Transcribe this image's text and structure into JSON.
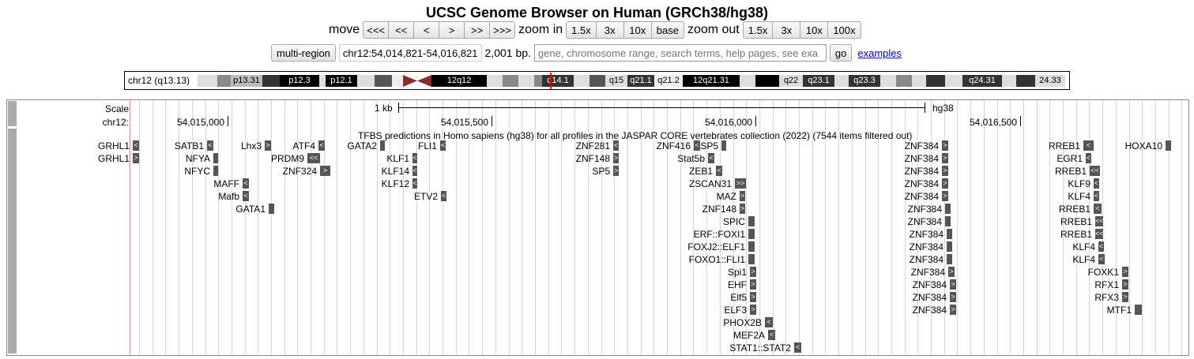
{
  "title": "UCSC Genome Browser on Human (GRCh38/hg38)",
  "nav": {
    "move_label": "move",
    "move_buttons": [
      "<<<",
      "<<",
      "<",
      ">",
      ">>",
      ">>>"
    ],
    "zoom_in_label": "zoom in",
    "zoom_in_buttons": [
      "1.5x",
      "3x",
      "10x",
      "base"
    ],
    "zoom_out_label": "zoom out",
    "zoom_out_buttons": [
      "1.5x",
      "3x",
      "10x",
      "100x"
    ]
  },
  "position": {
    "multi_region": "multi-region",
    "range": "chr12:54,014,821-54,016,821",
    "size": "2,001 bp.",
    "search_placeholder": "gene, chromosome range, search terms, help pages, see exa",
    "go": "go",
    "examples": "examples"
  },
  "ideogram": {
    "label": "chr12 (q13.13)",
    "bands": [
      {
        "name": "",
        "color": "#ddd"
      },
      {
        "name": "",
        "color": "#888"
      },
      {
        "name": "p13.31",
        "color": "#bbb"
      },
      {
        "name": "",
        "color": "#333"
      },
      {
        "name": "p12.3",
        "color": "#000"
      },
      {
        "name": "",
        "color": "#ddd"
      },
      {
        "name": "p12.1",
        "color": "#000"
      },
      {
        "name": "",
        "color": "#ddd"
      },
      {
        "name": "",
        "color": "#555"
      },
      {
        "name": "",
        "color": "#eee"
      },
      {
        "name": "cen",
        "color": "#8b2c2c"
      },
      {
        "name": "12q12",
        "color": "#000"
      },
      {
        "name": "",
        "color": "#ddd"
      },
      {
        "name": "",
        "color": "#888"
      },
      {
        "name": "",
        "color": "#ddd"
      },
      {
        "name": "",
        "color": "#888"
      },
      {
        "name": "q14.1",
        "color": "#333"
      },
      {
        "name": "",
        "color": "#ddd"
      },
      {
        "name": "",
        "color": "#555"
      },
      {
        "name": "q15",
        "color": "#ddd"
      },
      {
        "name": "q21.1",
        "color": "#333"
      },
      {
        "name": "q21.2",
        "color": "#eee"
      },
      {
        "name": "12q21.31",
        "color": "#000"
      },
      {
        "name": "",
        "color": "#ddd"
      },
      {
        "name": "",
        "color": "#000"
      },
      {
        "name": "q22",
        "color": "#ddd"
      },
      {
        "name": "q23.1",
        "color": "#333"
      },
      {
        "name": "",
        "color": "#ddd"
      },
      {
        "name": "q23.3",
        "color": "#333"
      },
      {
        "name": "",
        "color": "#ddd"
      },
      {
        "name": "",
        "color": "#888"
      },
      {
        "name": "",
        "color": "#ddd"
      },
      {
        "name": "",
        "color": "#333"
      },
      {
        "name": "",
        "color": "#ddd"
      },
      {
        "name": "q24.31",
        "color": "#333"
      },
      {
        "name": "",
        "color": "#ddd"
      },
      {
        "name": "",
        "color": "#333"
      },
      {
        "name": "24.33",
        "color": "#ddd"
      }
    ]
  },
  "tracks": {
    "scale_label": "Scale",
    "chrom_label": "chr12:",
    "scale_text": "1 kb",
    "assembly": "hg38",
    "ticks": [
      "54,015,000",
      "54,015,500",
      "54,016,000",
      "54,016,500"
    ],
    "tfbs_title": "TFBS predictions in Homo sapiens (hg38) for all profiles in the JASPAR CORE vertebrates collection (2022) (7544 items filtered out)",
    "features": [
      {
        "name": "GRHL1",
        "strand": "<"
      },
      {
        "name": "GRHL1",
        "strand": ">"
      },
      {
        "name": "SATB1",
        "strand": "<"
      },
      {
        "name": "NFYA",
        "strand": ""
      },
      {
        "name": "NFYC",
        "strand": ""
      },
      {
        "name": "MAFF",
        "strand": "<"
      },
      {
        "name": "Mafb",
        "strand": "<"
      },
      {
        "name": "GATA1",
        "strand": ""
      },
      {
        "name": "Lhx3",
        "strand": ">"
      },
      {
        "name": "PRDM9",
        "strand": "<<"
      },
      {
        "name": "ZNF324",
        "strand": ">"
      },
      {
        "name": "ATF4",
        "strand": "<"
      },
      {
        "name": "GATA2",
        "strand": ""
      },
      {
        "name": "FLI1",
        "strand": "<"
      },
      {
        "name": "KLF1",
        "strand": "<"
      },
      {
        "name": "KLF14",
        "strand": "<"
      },
      {
        "name": "KLF12",
        "strand": "<"
      },
      {
        "name": "ETV2",
        "strand": "<"
      },
      {
        "name": "ZNF281",
        "strand": "<"
      },
      {
        "name": "ZNF148",
        "strand": ">"
      },
      {
        "name": "SP5",
        "strand": ">"
      },
      {
        "name": "ZNF416",
        "strand": "<"
      },
      {
        "name": "Stat5b",
        "strand": "<"
      },
      {
        "name": "ZEB1",
        "strand": "<"
      },
      {
        "name": "ZSCAN31",
        "strand": ">>"
      },
      {
        "name": "MAZ",
        "strand": ">"
      },
      {
        "name": "ZNF148",
        "strand": ">"
      },
      {
        "name": "SPIC",
        "strand": ""
      },
      {
        "name": "ERF::FOXI1",
        "strand": ""
      },
      {
        "name": "FOXJ2::ELF1",
        "strand": ""
      },
      {
        "name": "FOXO1::FLI1",
        "strand": ""
      },
      {
        "name": "Spi1",
        "strand": ">"
      },
      {
        "name": "EHF",
        "strand": ">"
      },
      {
        "name": "Elf5",
        "strand": ">"
      },
      {
        "name": "ELF3",
        "strand": ">"
      },
      {
        "name": "PHOX2B",
        "strand": "<"
      },
      {
        "name": "MEF2A",
        "strand": "<"
      },
      {
        "name": "STAT1::STAT2",
        "strand": "<"
      },
      {
        "name": "SP5",
        "strand": ""
      },
      {
        "name": "ZNF384",
        "strand": ">"
      },
      {
        "name": "ZNF384",
        "strand": ">"
      },
      {
        "name": "ZNF384",
        "strand": ">"
      },
      {
        "name": "ZNF384",
        "strand": ">"
      },
      {
        "name": "ZNF384",
        "strand": ">"
      },
      {
        "name": "ZNF384",
        "strand": ""
      },
      {
        "name": "ZNF384",
        "strand": ""
      },
      {
        "name": "ZNF384",
        "strand": ""
      },
      {
        "name": "ZNF384",
        "strand": ""
      },
      {
        "name": "ZNF384",
        "strand": ""
      },
      {
        "name": "ZNF384",
        "strand": ">"
      },
      {
        "name": "ZNF384",
        "strand": ">"
      },
      {
        "name": "ZNF384",
        "strand": ">"
      },
      {
        "name": "ZNF384",
        "strand": ">"
      },
      {
        "name": "RREB1",
        "strand": "<"
      },
      {
        "name": "EGR1",
        "strand": "<"
      },
      {
        "name": "RREB1",
        "strand": "<<"
      },
      {
        "name": "KLF9",
        "strand": "<"
      },
      {
        "name": "KLF4",
        "strand": "<"
      },
      {
        "name": "RREB1",
        "strand": "<"
      },
      {
        "name": "RREB1",
        "strand": "<<"
      },
      {
        "name": "RREB1",
        "strand": "<<"
      },
      {
        "name": "KLF4",
        "strand": "<"
      },
      {
        "name": "KLF4",
        "strand": "<"
      },
      {
        "name": "FOXK1",
        "strand": ">"
      },
      {
        "name": "RFX1",
        "strand": ">"
      },
      {
        "name": "RFX3",
        "strand": ">"
      },
      {
        "name": "MTF1",
        "strand": ""
      },
      {
        "name": "HOXA10",
        "strand": ""
      }
    ]
  }
}
